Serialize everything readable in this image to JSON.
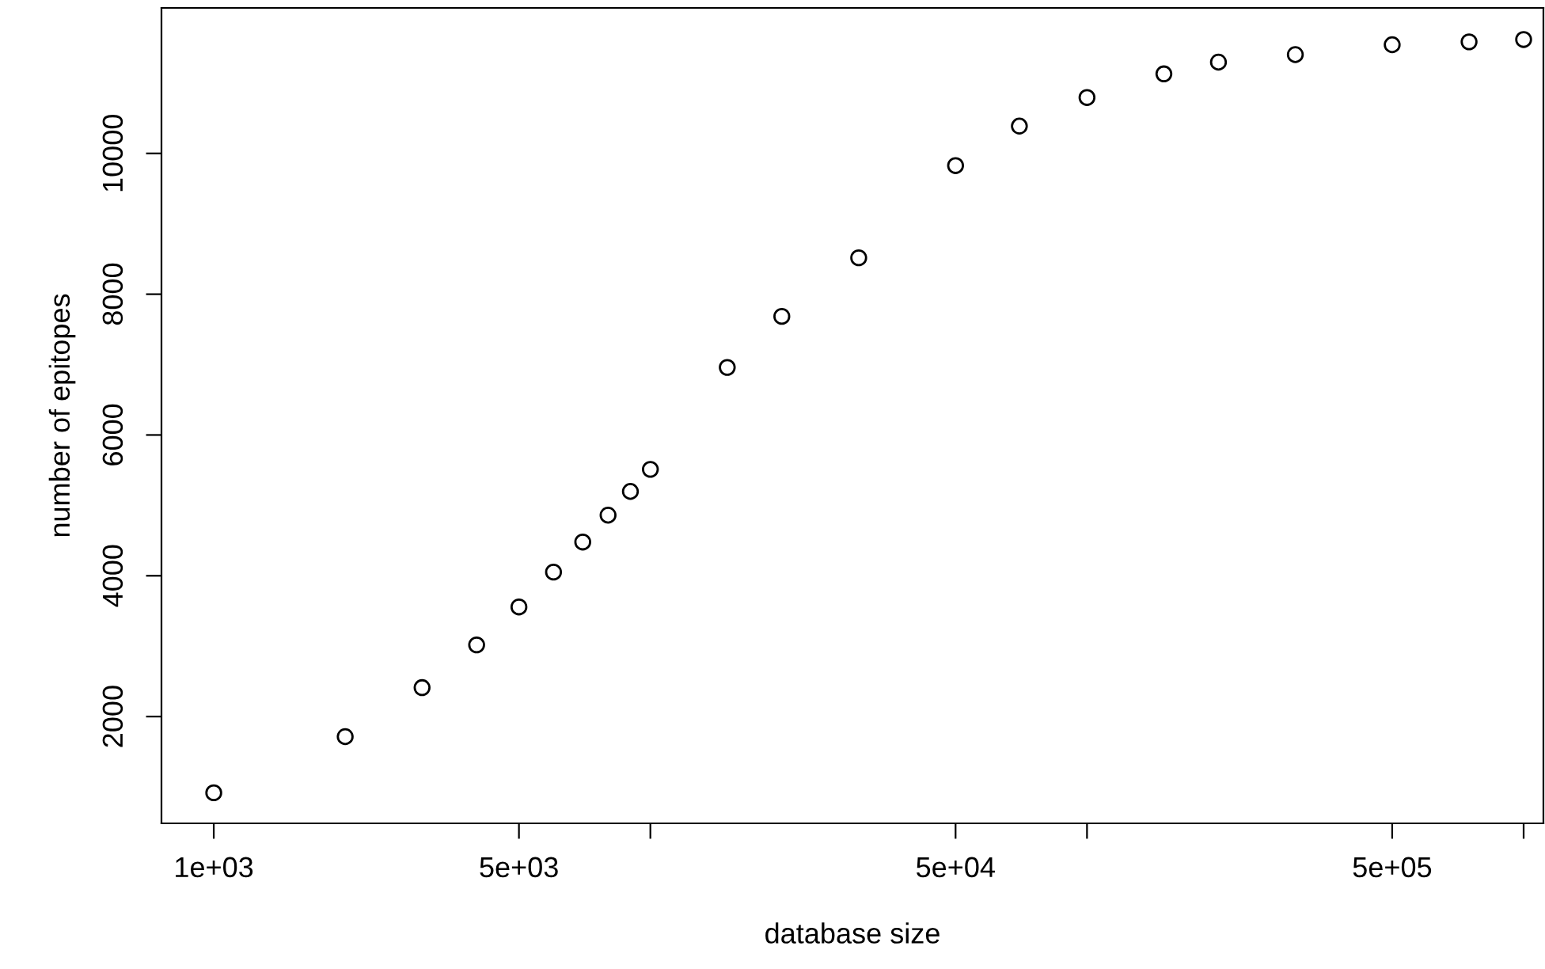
{
  "chart_data": {
    "type": "scatter",
    "xlabel": "database size",
    "ylabel": "number of epitopes",
    "log": "x",
    "marker": "circle",
    "grid": false,
    "legend": false,
    "x": [
      1000,
      2000,
      3000,
      4000,
      5000,
      6000,
      7000,
      8000,
      9000,
      10000,
      15000,
      20000,
      30000,
      50000,
      70000,
      100000,
      150000,
      200000,
      300000,
      500000,
      750000,
      1000000
    ],
    "series": [
      {
        "color": "#000000",
        "values": [
          917,
          1715,
          2411,
          3018,
          3557,
          4052,
          4479,
          4861,
          5198,
          5512,
          6960,
          7685,
          8517,
          9827,
          10388,
          10794,
          11130,
          11297,
          11404,
          11544,
          11585,
          11618
        ]
      }
    ],
    "xlim": [
      759,
      1110000
    ],
    "ylim": [
      483,
      12067
    ],
    "xticks": [
      {
        "value": 1000,
        "label": "1e+03"
      },
      {
        "value": 5000,
        "label": "5e+03"
      },
      {
        "value": 10000,
        "label": null
      },
      {
        "value": 50000,
        "label": "5e+04"
      },
      {
        "value": 100000,
        "label": null
      },
      {
        "value": 500000,
        "label": "5e+05"
      },
      {
        "value": 1000000,
        "label": null
      }
    ],
    "yticks": [
      2000,
      4000,
      6000,
      8000,
      10000
    ]
  }
}
